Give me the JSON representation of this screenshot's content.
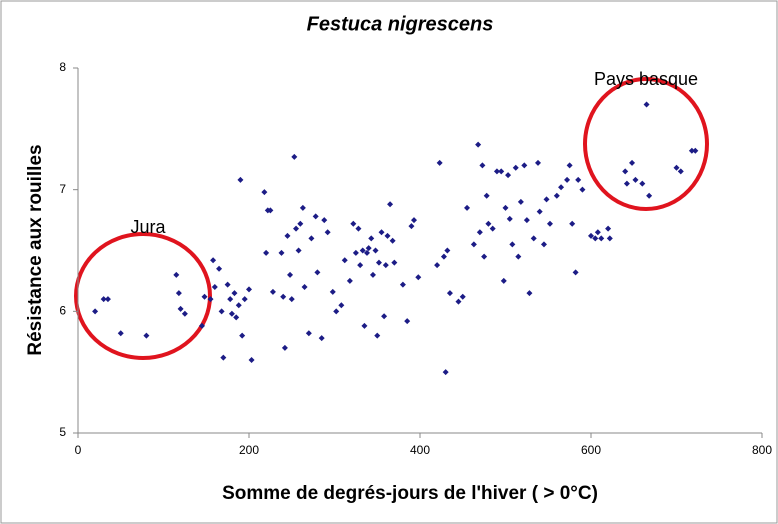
{
  "chart_data": {
    "type": "scatter",
    "title": "Festuca nigrescens",
    "xlabel": "Somme de degrés-jours de l'hiver ( > 0°C)",
    "ylabel": "Résistance aux rouilles",
    "annotations": [
      "Jura",
      "Pays basque"
    ],
    "xlim": [
      0,
      800
    ],
    "xticks": [
      0,
      200,
      400,
      600,
      800
    ],
    "ylim": [
      5,
      8
    ],
    "yticks": [
      5,
      6,
      7,
      8
    ],
    "grid": false,
    "series": [
      {
        "color": "#1c1c86",
        "x": [
          20,
          30,
          35,
          50,
          80,
          115,
          118,
          120,
          125,
          145,
          148,
          155,
          158,
          160,
          165,
          168,
          170,
          175,
          178,
          180,
          183,
          185,
          188,
          192,
          195,
          190,
          200,
          203,
          218,
          220,
          222,
          225,
          228,
          238,
          240,
          242,
          245,
          248,
          250,
          253,
          255,
          258,
          260,
          263,
          265,
          270,
          273,
          278,
          280,
          285,
          288,
          292,
          298,
          302,
          308,
          312,
          318,
          322,
          325,
          328,
          330,
          333,
          335,
          338,
          340,
          343,
          345,
          348,
          350,
          352,
          355,
          358,
          360,
          362,
          365,
          368,
          370,
          380,
          385,
          390,
          393,
          398,
          420,
          423,
          428,
          430,
          432,
          435,
          445,
          450,
          455,
          463,
          468,
          470,
          473,
          475,
          478,
          480,
          485,
          490,
          495,
          498,
          500,
          503,
          505,
          508,
          512,
          515,
          518,
          522,
          525,
          528,
          533,
          538,
          540,
          545,
          548,
          552,
          560,
          565,
          572,
          575,
          578,
          582,
          585,
          590,
          600,
          605,
          608,
          612,
          620,
          622,
          640,
          642,
          648,
          652,
          660,
          665,
          668,
          700,
          705,
          718,
          722
        ],
        "values": [
          6.0,
          6.1,
          6.1,
          5.82,
          5.8,
          6.3,
          6.15,
          6.02,
          5.98,
          5.88,
          6.12,
          6.1,
          6.42,
          6.2,
          6.35,
          6.0,
          5.62,
          6.22,
          6.1,
          5.98,
          6.15,
          5.95,
          6.05,
          5.8,
          6.1,
          7.08,
          6.18,
          5.6,
          6.98,
          6.48,
          6.83,
          6.83,
          6.16,
          6.48,
          6.12,
          5.7,
          6.62,
          6.3,
          6.1,
          7.27,
          6.68,
          6.5,
          6.72,
          6.85,
          6.2,
          5.82,
          6.6,
          6.78,
          6.32,
          5.78,
          6.75,
          6.65,
          6.16,
          6.0,
          6.05,
          6.42,
          6.25,
          6.72,
          6.48,
          6.68,
          6.38,
          6.5,
          5.88,
          6.48,
          6.52,
          6.6,
          6.3,
          6.5,
          5.8,
          6.4,
          6.65,
          5.96,
          6.38,
          6.62,
          6.88,
          6.58,
          6.4,
          6.22,
          5.92,
          6.7,
          6.75,
          6.28,
          6.38,
          7.22,
          6.45,
          5.5,
          6.5,
          6.15,
          6.08,
          6.12,
          6.85,
          6.55,
          7.37,
          6.65,
          7.2,
          6.45,
          6.95,
          6.72,
          6.68,
          7.15,
          7.15,
          6.25,
          6.85,
          7.12,
          6.76,
          6.55,
          7.18,
          6.45,
          6.9,
          7.2,
          6.75,
          6.15,
          6.6,
          7.22,
          6.82,
          6.55,
          6.92,
          6.72,
          6.95,
          7.02,
          7.08,
          7.2,
          6.72,
          6.32,
          7.08,
          7.0,
          6.62,
          6.6,
          6.65,
          6.6,
          6.68,
          6.6,
          7.15,
          7.05,
          7.22,
          7.08,
          7.05,
          7.7,
          6.95,
          7.18,
          7.15,
          7.32,
          7.32
        ]
      }
    ]
  }
}
